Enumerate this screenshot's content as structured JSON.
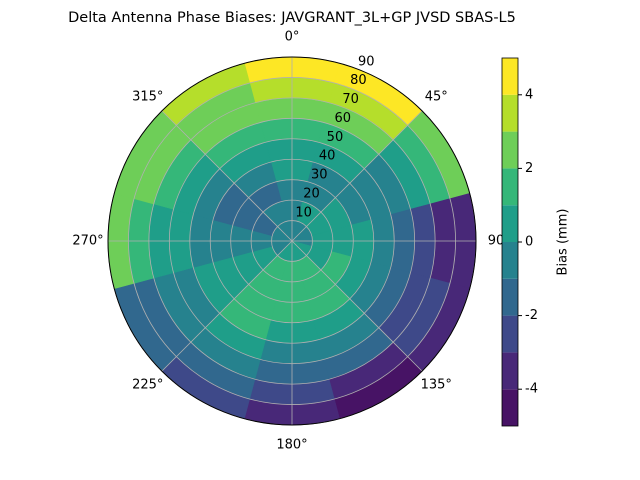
{
  "chart_data": {
    "type": "polar-contour",
    "title": "Delta Antenna Phase Biases: JAVGRANT_3L+GP  JVSD SBAS-L5",
    "azimuth": [
      0,
      30,
      60,
      90,
      120,
      150,
      180,
      210,
      240,
      270,
      300,
      330
    ],
    "zenith": [
      5,
      15,
      25,
      35,
      45,
      55,
      65,
      75,
      85
    ],
    "values": [
      [
        -0.5,
        -0.5,
        -0.5,
        0.5,
        0.5,
        1.5,
        2.5,
        3.5,
        4.5
      ],
      [
        -0.5,
        0.5,
        -0.5,
        -0.5,
        0.5,
        1.5,
        2.5,
        3.5,
        4.5
      ],
      [
        -0.5,
        0.5,
        0.5,
        -0.5,
        -0.5,
        -0.5,
        0.5,
        1.5,
        2.5
      ],
      [
        -0.5,
        0.5,
        0.5,
        0.5,
        -0.5,
        -1.5,
        -2.5,
        -3.5,
        -3.5
      ],
      [
        0.5,
        0.5,
        1.5,
        0.5,
        -0.5,
        -1.5,
        -2.5,
        -2.5,
        -3.5
      ],
      [
        0.5,
        1.5,
        1.5,
        1.5,
        0.5,
        -0.5,
        -1.5,
        -3.5,
        -4.5
      ],
      [
        0.5,
        1.5,
        1.5,
        1.5,
        0.5,
        -0.5,
        -1.5,
        -2.5,
        -3.5
      ],
      [
        0.5,
        1.5,
        1.5,
        1.5,
        1.5,
        0.5,
        -0.5,
        -1.5,
        -2.5
      ],
      [
        -0.5,
        0.5,
        0.5,
        0.5,
        0.5,
        -0.5,
        -0.5,
        -1.5,
        -1.5
      ],
      [
        -0.5,
        -0.5,
        -0.5,
        -0.5,
        -0.5,
        0.5,
        0.5,
        1.5,
        2.5
      ],
      [
        -0.5,
        -1.5,
        -1.5,
        -1.5,
        -0.5,
        0.5,
        1.5,
        2.5,
        2.5
      ],
      [
        -0.5,
        -0.5,
        -1.5,
        -0.5,
        0.5,
        1.5,
        2.5,
        2.5,
        3.5
      ]
    ],
    "levels": [
      -5,
      -4,
      -3,
      -2,
      -1,
      0,
      1,
      2,
      3,
      4,
      5
    ],
    "colors": [
      "#471365",
      "#482878",
      "#3e4989",
      "#31688e",
      "#26828e",
      "#1f9e89",
      "#35b779",
      "#6ece58",
      "#b5de2b",
      "#fde725"
    ],
    "rlim": [
      0,
      90
    ],
    "rticks": [
      10,
      20,
      30,
      40,
      50,
      60,
      70,
      80,
      90
    ],
    "theta_ticks": [
      {
        "value": 0,
        "label": "0°"
      },
      {
        "value": 45,
        "label": "45°"
      },
      {
        "value": 90,
        "label": "90"
      },
      {
        "value": 135,
        "label": "135°"
      },
      {
        "value": 180,
        "label": "180°"
      },
      {
        "value": 225,
        "label": "225°"
      },
      {
        "value": 270,
        "label": "270°"
      },
      {
        "value": 315,
        "label": "315°"
      }
    ],
    "grid": true,
    "colorbar_label": "Bias (mm)",
    "colorbar_ticks": [
      -4,
      -2,
      0,
      2,
      4
    ],
    "colorbar_lim": [
      -5,
      5
    ]
  }
}
